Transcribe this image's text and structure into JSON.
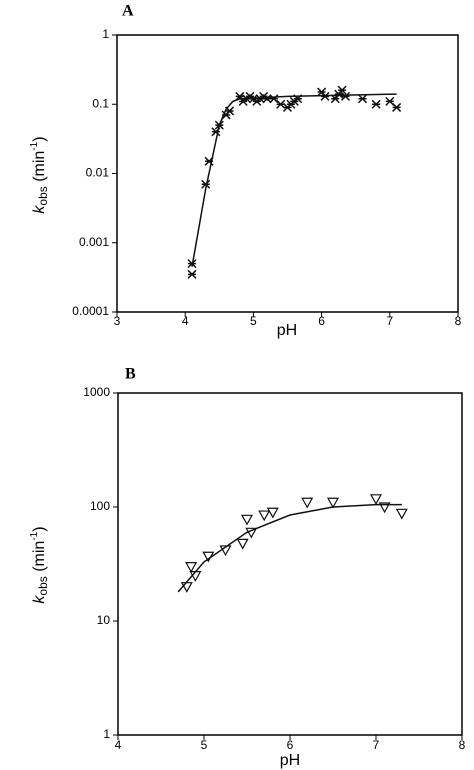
{
  "chart_data": [
    {
      "type": "scatter",
      "panel": "A",
      "x_label": "pH",
      "y_label": [
        "k",
        "obs",
        " (min",
        "-1",
        ")"
      ],
      "log_y": true,
      "xlim": [
        3,
        8
      ],
      "ylim": [
        0.0001,
        1
      ],
      "xticks": [
        3,
        4,
        5,
        6,
        7,
        8
      ],
      "yticks": [
        0.0001,
        0.001,
        0.01,
        0.1,
        1
      ],
      "series": [
        {
          "marker": "asterisk",
          "color": "#111",
          "x": [
            4.1,
            4.1,
            4.3,
            4.35,
            4.45,
            4.5,
            4.6,
            4.65,
            4.8,
            4.85,
            4.9,
            4.95,
            5.0,
            5.05,
            5.1,
            5.15,
            5.2,
            5.3,
            5.4,
            5.5,
            5.55,
            5.6,
            5.65,
            6.0,
            6.05,
            6.2,
            6.25,
            6.3,
            6.35,
            6.6,
            6.8,
            7.0,
            7.1
          ],
          "values": [
            0.00035,
            0.0005,
            0.007,
            0.015,
            0.04,
            0.05,
            0.07,
            0.08,
            0.13,
            0.11,
            0.12,
            0.13,
            0.12,
            0.11,
            0.12,
            0.13,
            0.12,
            0.12,
            0.1,
            0.09,
            0.1,
            0.11,
            0.12,
            0.15,
            0.13,
            0.12,
            0.14,
            0.16,
            0.13,
            0.12,
            0.1,
            0.11,
            0.09
          ]
        },
        {
          "marker": "line",
          "color": "#111",
          "x": [
            4.1,
            4.3,
            4.5,
            4.6,
            4.7,
            4.8,
            5.5,
            7.1
          ],
          "values": [
            0.00045,
            0.006,
            0.05,
            0.085,
            0.11,
            0.12,
            0.13,
            0.14
          ]
        }
      ]
    },
    {
      "type": "scatter",
      "panel": "B",
      "x_label": "pH",
      "y_label": [
        "k",
        "obs",
        " (min",
        "-1",
        ")"
      ],
      "log_y": true,
      "xlim": [
        4,
        8
      ],
      "ylim": [
        1,
        1000
      ],
      "xticks": [
        4,
        5,
        6,
        7,
        8
      ],
      "yticks": [
        1,
        10,
        100,
        1000
      ],
      "series": [
        {
          "marker": "triangle-down",
          "color": "#111",
          "x": [
            4.8,
            4.85,
            4.9,
            5.05,
            5.25,
            5.45,
            5.5,
            5.55,
            5.7,
            5.8,
            6.2,
            6.5,
            7.0,
            7.1,
            7.3
          ],
          "values": [
            20,
            30,
            25,
            37,
            42,
            48,
            78,
            60,
            85,
            90,
            110,
            110,
            118,
            100,
            88
          ]
        },
        {
          "marker": "line",
          "color": "#111",
          "x": [
            4.7,
            5.0,
            5.5,
            6.0,
            6.5,
            7.0,
            7.3
          ],
          "values": [
            18,
            33,
            60,
            85,
            100,
            105,
            105
          ]
        }
      ]
    }
  ]
}
